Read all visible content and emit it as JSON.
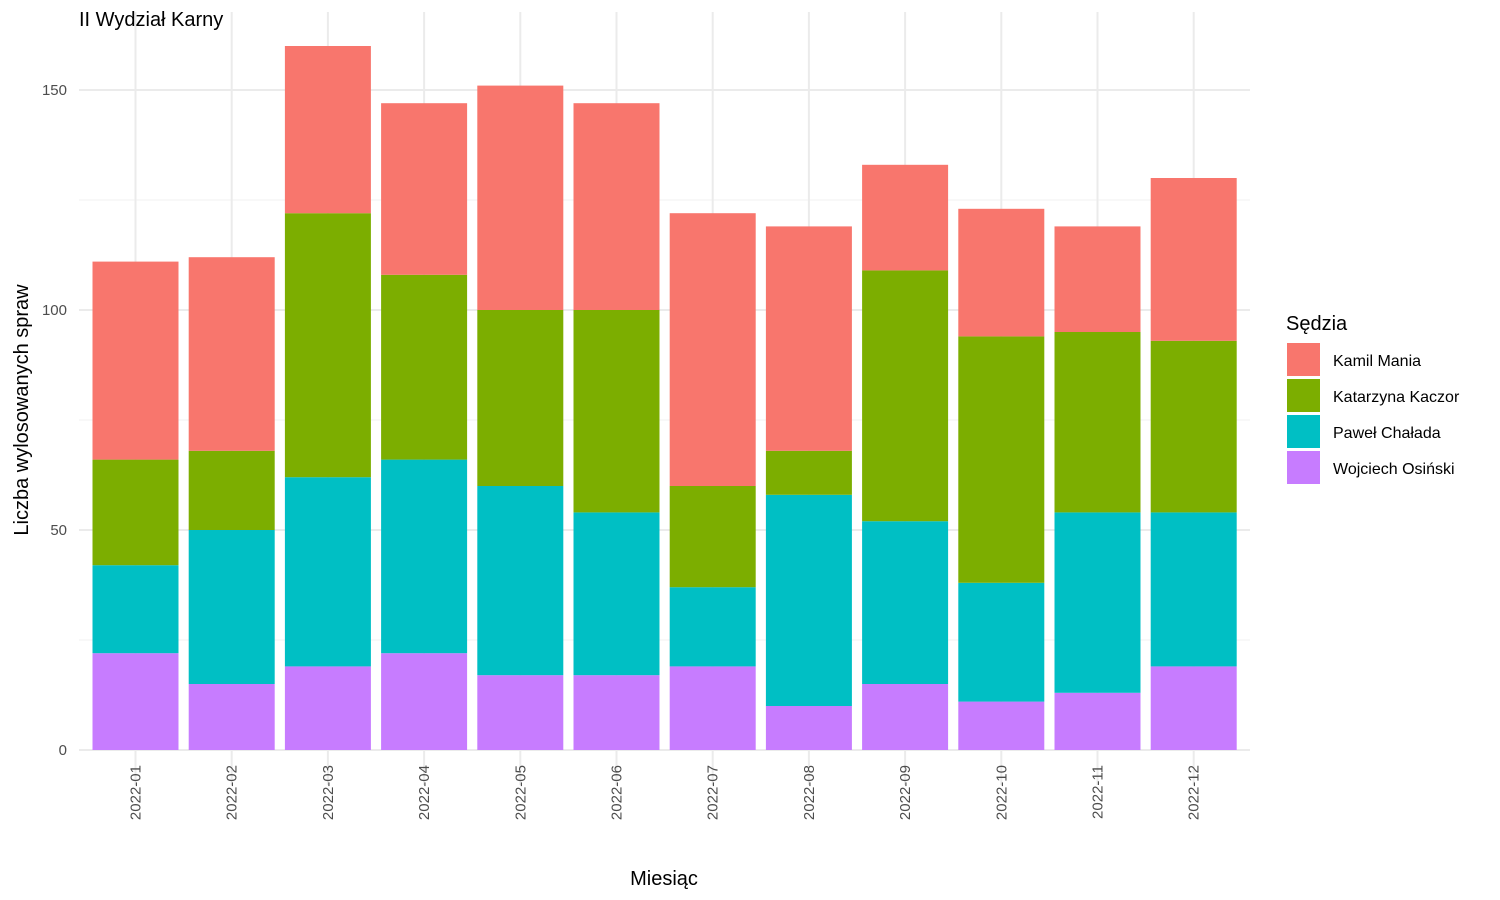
{
  "chart_data": {
    "type": "bar",
    "stacked": true,
    "title": "II Wydział Karny",
    "xlabel": "Miesiąc",
    "ylabel": "Liczba wylosowanych spraw",
    "ylim": [
      0,
      160
    ],
    "yticks": [
      0,
      50,
      100,
      150
    ],
    "grid": true,
    "legend_title": "Sędzia",
    "legend_position": "right",
    "categories": [
      "2022-01",
      "2022-02",
      "2022-03",
      "2022-04",
      "2022-05",
      "2022-06",
      "2022-07",
      "2022-08",
      "2022-09",
      "2022-10",
      "2022-11",
      "2022-12"
    ],
    "series": [
      {
        "name": "Kamil Mania",
        "color": "#F8766D",
        "values": [
          45,
          44,
          38,
          39,
          51,
          47,
          62,
          51,
          24,
          29,
          24,
          37
        ]
      },
      {
        "name": "Katarzyna Kaczor",
        "color": "#7CAE00",
        "values": [
          24,
          18,
          60,
          42,
          40,
          46,
          23,
          10,
          57,
          56,
          41,
          39
        ]
      },
      {
        "name": "Paweł Chałada",
        "color": "#00BFC4",
        "values": [
          20,
          35,
          43,
          44,
          43,
          37,
          18,
          48,
          37,
          27,
          41,
          35
        ]
      },
      {
        "name": "Wojciech Osiński",
        "color": "#C77CFF",
        "values": [
          22,
          15,
          19,
          22,
          17,
          17,
          19,
          10,
          15,
          11,
          13,
          19
        ]
      }
    ]
  }
}
